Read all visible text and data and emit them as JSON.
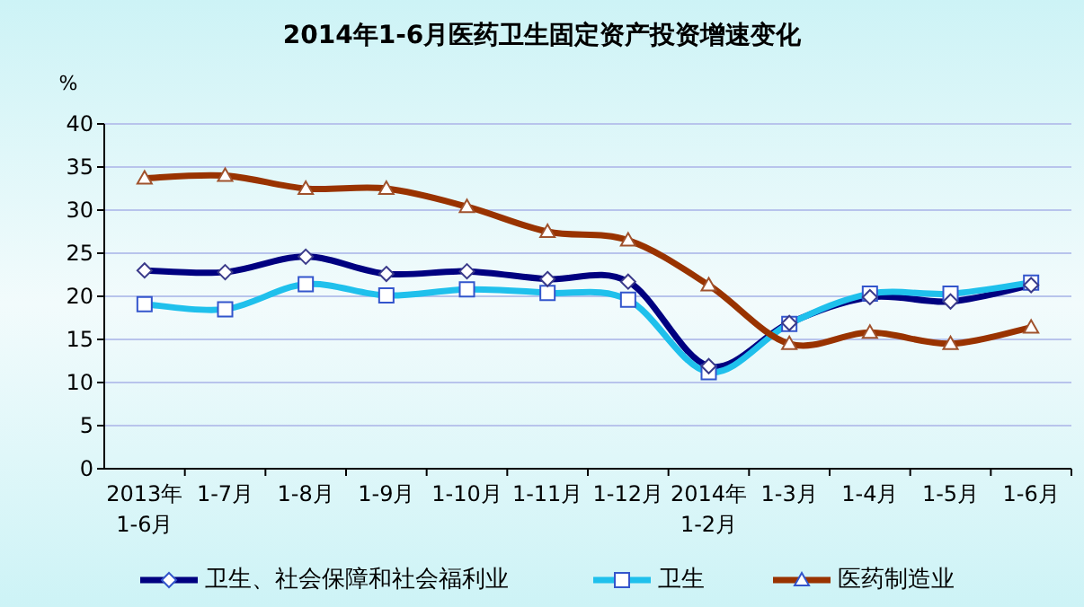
{
  "chart_data": {
    "type": "line",
    "title": "2014年1-6月医药卫生固定资产投资增速变化",
    "ylabel": "%",
    "categories": [
      "2013年\n1-6月",
      "1-7月",
      "1-8月",
      "1-9月",
      "1-10月",
      "1-11月",
      "1-12月",
      "2014年\n1-2月",
      "1-3月",
      "1-4月",
      "1-5月",
      "1-6月"
    ],
    "series": [
      {
        "name": "卫生、社会保障和社会福利业",
        "color": "#000080",
        "marker": "diamond",
        "values": [
          23.0,
          22.8,
          24.6,
          22.6,
          22.9,
          22.0,
          21.7,
          11.9,
          16.9,
          19.9,
          19.4,
          21.3
        ]
      },
      {
        "name": "卫生",
        "color": "#1fc0ec",
        "marker": "square",
        "values": [
          19.1,
          18.5,
          21.4,
          20.1,
          20.8,
          20.4,
          19.6,
          11.2,
          16.8,
          20.3,
          20.3,
          21.6
        ]
      },
      {
        "name": "医药制造业",
        "color": "#993300",
        "marker": "triangle",
        "values": [
          33.7,
          34.0,
          32.5,
          32.5,
          30.4,
          27.5,
          26.5,
          21.3,
          14.5,
          15.8,
          14.5,
          16.4
        ]
      }
    ],
    "ylim": [
      0,
      40
    ],
    "yticks": [
      0,
      5,
      10,
      15,
      20,
      25,
      30,
      35,
      40
    ],
    "grid": "y",
    "legend": "bottom"
  }
}
